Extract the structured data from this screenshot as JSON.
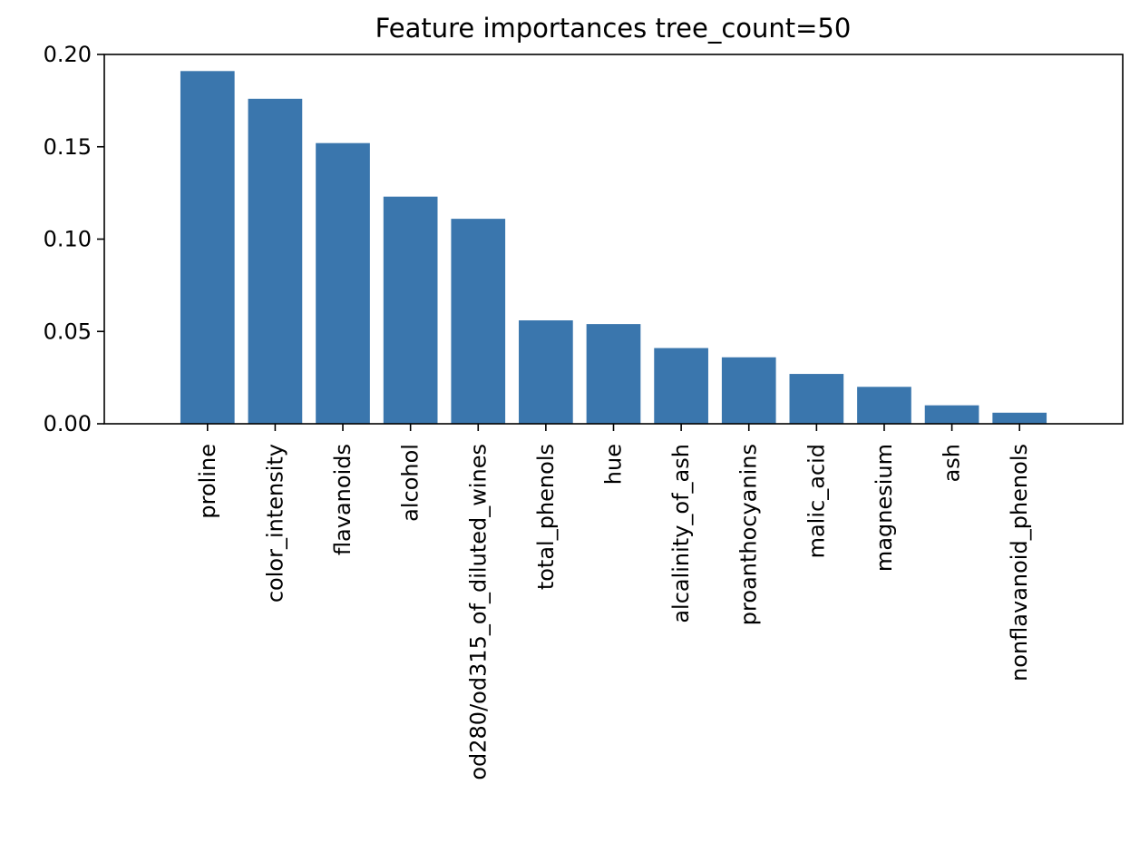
{
  "chart_data": {
    "type": "bar",
    "title": "Feature importances tree_count=50",
    "xlabel": "",
    "ylabel": "",
    "categories": [
      "proline",
      "color_intensity",
      "flavanoids",
      "alcohol",
      "od280/od315_of_diluted_wines",
      "total_phenols",
      "hue",
      "alcalinity_of_ash",
      "proanthocyanins",
      "malic_acid",
      "magnesium",
      "ash",
      "nonflavanoid_phenols"
    ],
    "values": [
      0.191,
      0.176,
      0.152,
      0.123,
      0.111,
      0.056,
      0.054,
      0.041,
      0.036,
      0.027,
      0.02,
      0.01,
      0.006
    ],
    "ylim": [
      0,
      0.2
    ],
    "yticks": [
      0.0,
      0.05,
      0.1,
      0.15,
      0.2
    ],
    "ytick_labels": [
      "0.00",
      "0.05",
      "0.10",
      "0.15",
      "0.20"
    ],
    "x_tick_rotation": "vertical",
    "grid": false,
    "legend": "none",
    "bar_color": "#3a76ad"
  }
}
